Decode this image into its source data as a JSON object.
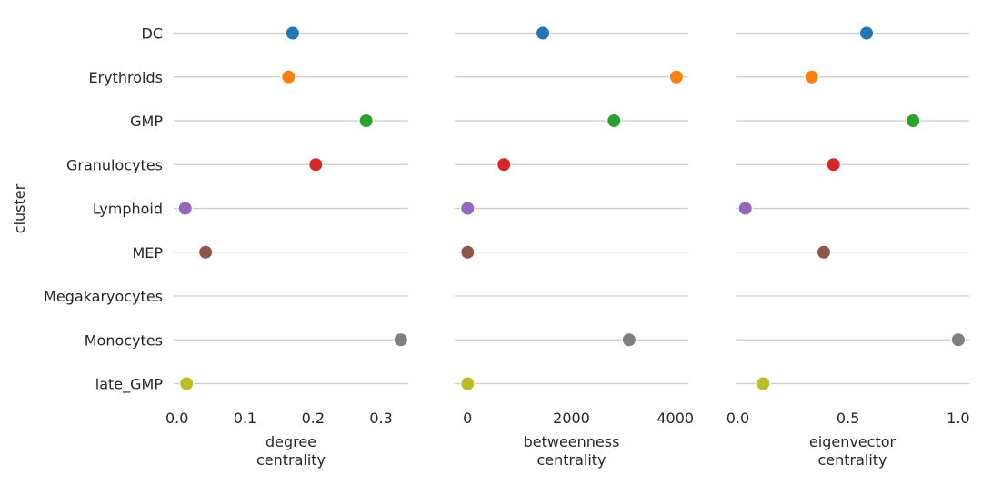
{
  "chart_data": {
    "type": "scatter",
    "ylabel": "cluster",
    "categories": [
      "DC",
      "Erythroids",
      "GMP",
      "Granulocytes",
      "Lymphoid",
      "MEP",
      "Megakaryocytes",
      "Monocytes",
      "late_GMP"
    ],
    "colors": [
      "#1f77b4",
      "#ff7f0e",
      "#2ca02c",
      "#d62728",
      "#9467bd",
      "#8c564b",
      "#e377c2",
      "#7f7f7f",
      "#bcbd22"
    ],
    "grid": "horizontal",
    "panels": [
      {
        "xlabel_lines": [
          "degree",
          "centrality"
        ],
        "xlim": [
          -0.005,
          0.34
        ],
        "ticks": [
          0.0,
          0.1,
          0.2,
          0.3
        ],
        "tick_labels": [
          "0.0",
          "0.1",
          "0.2",
          "0.3"
        ],
        "values": [
          0.17,
          0.164,
          0.278,
          0.204,
          0.012,
          0.042,
          null,
          0.329,
          0.014
        ]
      },
      {
        "xlabel_lines": [
          "betweenness",
          "centrality"
        ],
        "xlim": [
          -250,
          4250
        ],
        "ticks": [
          0,
          2000,
          4000
        ],
        "tick_labels": [
          "0",
          "2000",
          "4000"
        ],
        "values": [
          1450,
          4020,
          2820,
          700,
          0,
          0,
          null,
          3110,
          0
        ]
      },
      {
        "xlabel_lines": [
          "eigenvector",
          "centrality"
        ],
        "xlim": [
          -0.01,
          1.05
        ],
        "ticks": [
          0.0,
          0.5,
          1.0
        ],
        "tick_labels": [
          "0.0",
          "0.5",
          "1.0"
        ],
        "values": [
          0.584,
          0.335,
          0.795,
          0.434,
          0.034,
          0.39,
          null,
          1.0,
          0.115
        ]
      }
    ]
  }
}
